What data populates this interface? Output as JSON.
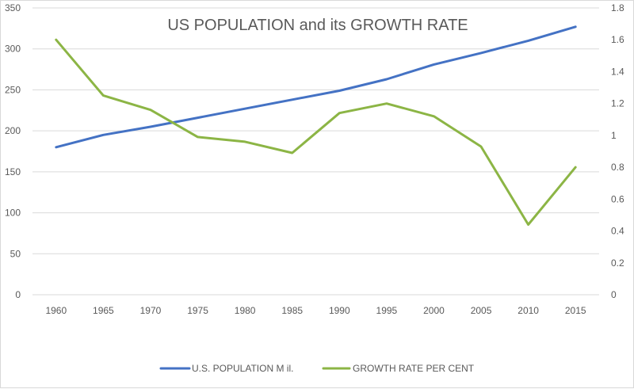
{
  "chart_data": {
    "type": "line",
    "title": "US POPULATION and its GROWTH RATE",
    "xlabel": "",
    "ylabel": "",
    "y2label": "",
    "categories": [
      "1960",
      "1965",
      "1970",
      "1975",
      "1980",
      "1985",
      "1990",
      "1995",
      "2000",
      "2005",
      "2010",
      "2015"
    ],
    "series": [
      {
        "name": "U.S. POPULATION M il.",
        "axis": "left",
        "color": "#4472c4",
        "values": [
          180,
          195,
          205,
          216,
          227,
          238,
          249,
          263,
          281,
          295,
          310,
          327
        ]
      },
      {
        "name": "GROWTH RATE PER CENT",
        "axis": "right",
        "color": "#8cb545",
        "values": [
          1.6,
          1.25,
          1.16,
          0.99,
          0.96,
          0.89,
          1.14,
          1.2,
          1.12,
          0.93,
          0.44,
          0.8
        ]
      }
    ],
    "ylim": [
      0,
      350
    ],
    "yticks": [
      "0",
      "50",
      "100",
      "150",
      "200",
      "250",
      "300",
      "350"
    ],
    "y2lim": [
      0,
      1.8
    ],
    "y2ticks": [
      "0",
      "0.2",
      "0.4",
      "0.6",
      "0.8",
      "1",
      "1.2",
      "1.4",
      "1.6",
      "1.8"
    ],
    "grid": true,
    "legend_position": "bottom"
  }
}
